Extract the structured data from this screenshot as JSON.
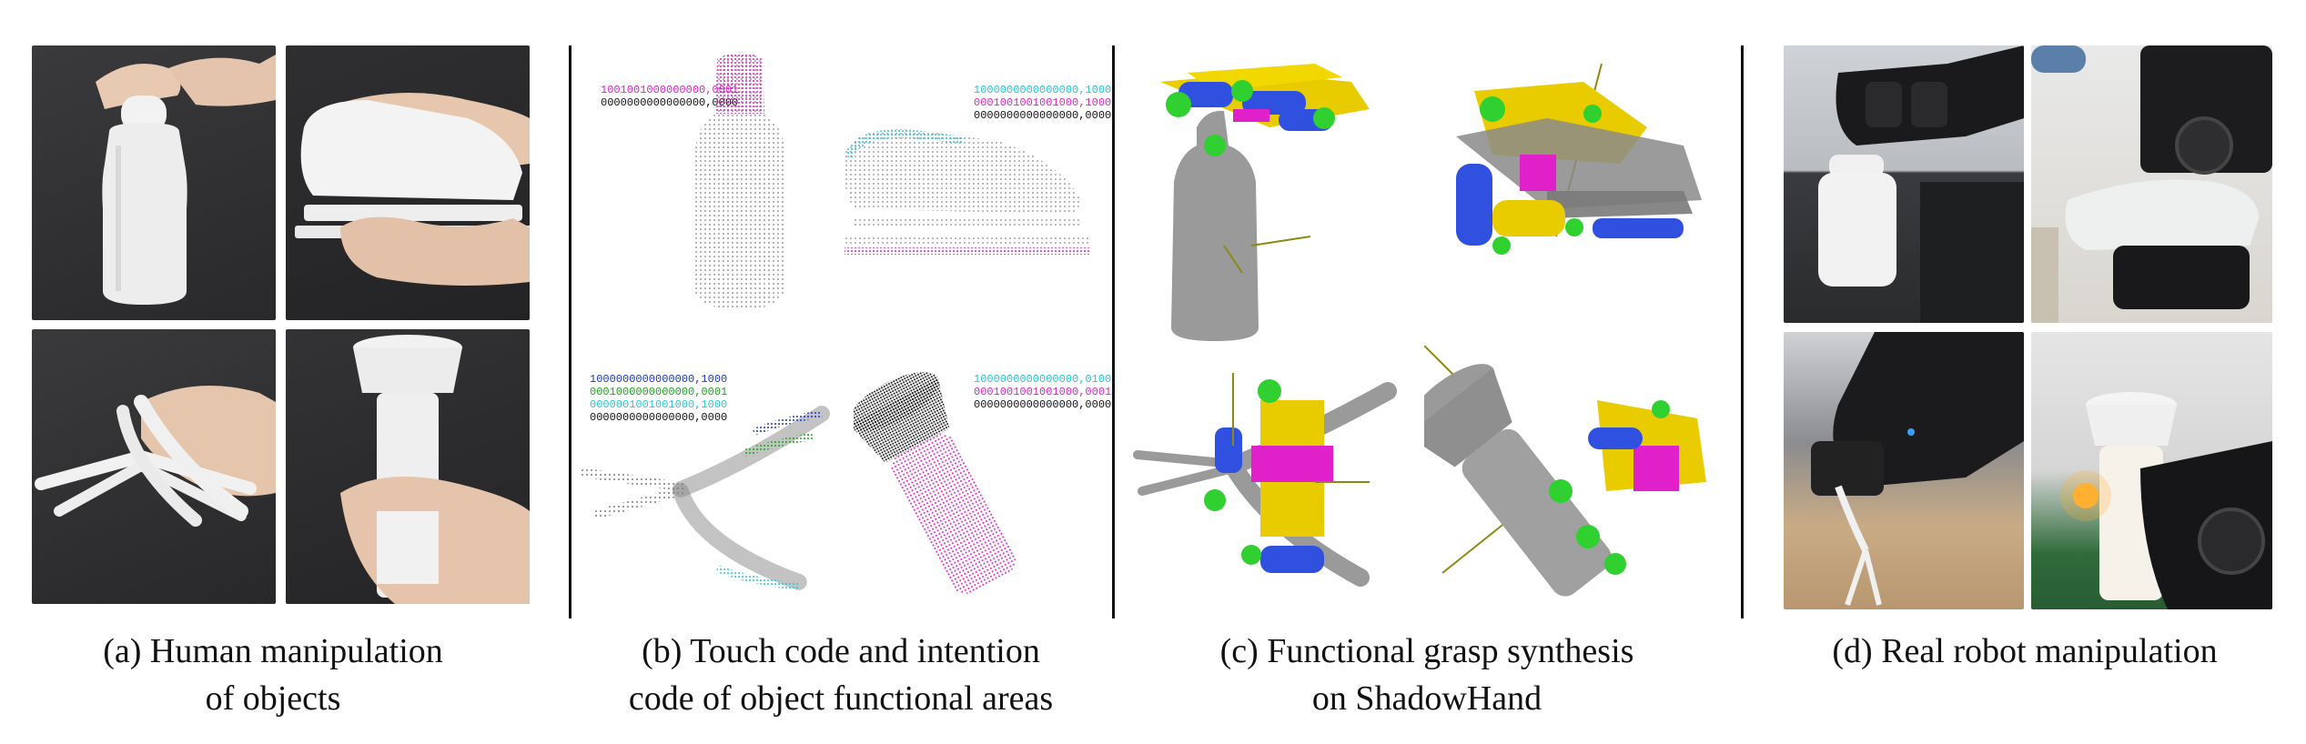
{
  "panels": {
    "a": {
      "caption_line1": "(a) Human manipulation",
      "caption_line2": "of objects"
    },
    "b": {
      "caption_line1": "(b) Touch code and intention",
      "caption_line2": "code of object functional areas",
      "codes": {
        "bottle": [
          "1001001000000000,0001",
          "0000000000000000,0000"
        ],
        "stapler": [
          "1000000000000000,1000",
          "0001001001001000,1000",
          "0000000000000000,0000"
        ],
        "pliers": [
          "1000000000000000,1000",
          "0001000000000000,0001",
          "0000001001001000,1000",
          "0000000000000000,0000"
        ],
        "flashlight": [
          "1000000000000000,0100",
          "0001001001001000,0001",
          "0000000000000000,0000"
        ]
      }
    },
    "c": {
      "caption_line1": "(c) Functional grasp synthesis",
      "caption_line2": "on ShadowHand"
    },
    "d": {
      "caption_line1": "(d) Real robot manipulation"
    }
  },
  "colors": {
    "magenta": "#e020c8",
    "cyan": "#20c8d8",
    "green": "#18a818",
    "blue": "#1838c8",
    "black": "#111111",
    "yellow": "#f0d800",
    "hand_green": "#30d030",
    "hand_blue": "#3050e0",
    "grey_object": "#9a9a9a"
  }
}
